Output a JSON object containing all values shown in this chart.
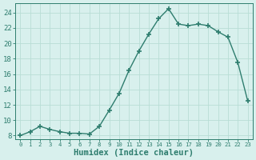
{
  "x": [
    0,
    1,
    2,
    3,
    4,
    5,
    6,
    7,
    8,
    9,
    10,
    11,
    12,
    13,
    14,
    15,
    16,
    17,
    18,
    19,
    20,
    21,
    22,
    23
  ],
  "y": [
    8.0,
    8.5,
    9.2,
    8.8,
    8.5,
    8.3,
    8.3,
    8.2,
    9.2,
    11.3,
    13.5,
    16.5,
    19.0,
    21.2,
    23.2,
    24.5,
    22.5,
    22.3,
    22.5,
    22.3,
    21.5,
    20.8,
    17.5,
    12.5
  ],
  "line_color": "#2e7d6e",
  "marker": "+",
  "marker_size": 4,
  "marker_lw": 1.2,
  "bg_color": "#d8f0ed",
  "grid_color": "#b8ddd6",
  "xlabel": "Humidex (Indice chaleur)",
  "ylim": [
    7.5,
    25.2
  ],
  "xlim": [
    -0.5,
    23.5
  ],
  "yticks": [
    8,
    10,
    12,
    14,
    16,
    18,
    20,
    22,
    24
  ],
  "xticks": [
    0,
    1,
    2,
    3,
    4,
    5,
    6,
    7,
    8,
    9,
    10,
    11,
    12,
    13,
    14,
    15,
    16,
    17,
    18,
    19,
    20,
    21,
    22,
    23
  ],
  "tick_color": "#2e7d6e",
  "label_color": "#2e7d6e",
  "font_size": 6.5,
  "xlabel_fontsize": 7.5,
  "linewidth": 1.0
}
